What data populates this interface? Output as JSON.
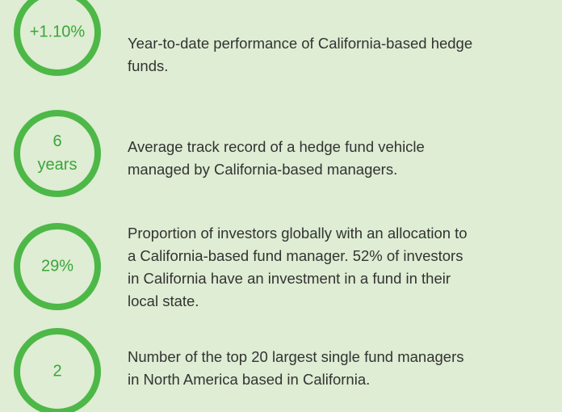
{
  "items": [
    {
      "stat_lines": [
        "+1.10%"
      ],
      "description_lines": [
        "Year-to-date performance of California-based hedge",
        "funds."
      ]
    },
    {
      "stat_lines": [
        "6",
        "years"
      ],
      "description_lines": [
        "Average track record of a hedge fund vehicle",
        "managed by California-based managers."
      ]
    },
    {
      "stat_lines": [
        "29%"
      ],
      "description_lines": [
        "Proportion of investors globally with an allocation to",
        "a California-based fund manager. 52% of investors",
        "in California have an investment in a fund in their",
        "local state."
      ]
    },
    {
      "stat_lines": [
        "2"
      ],
      "description_lines": [
        "Number of the top 20 largest single fund managers",
        "in North America based in California."
      ]
    }
  ]
}
